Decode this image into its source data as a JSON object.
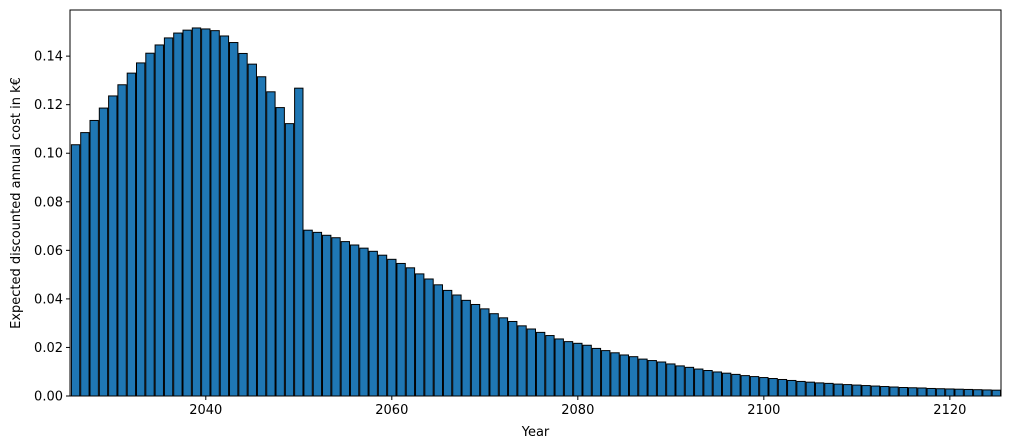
{
  "chart_data": {
    "type": "bar",
    "title": "",
    "xlabel": "Year",
    "ylabel": "Expected discounted annual cost in k€",
    "xlim": [
      2025.4,
      2125.5
    ],
    "ylim": [
      0.0,
      0.159
    ],
    "x_ticks": [
      2040,
      2060,
      2080,
      2100,
      2120
    ],
    "y_ticks": [
      0.0,
      0.02,
      0.04,
      0.06,
      0.08,
      0.1,
      0.12,
      0.14
    ],
    "y_tick_labels": [
      "0.00",
      "0.02",
      "0.04",
      "0.06",
      "0.08",
      "0.10",
      "0.12",
      "0.14"
    ],
    "grid": false,
    "colors": {
      "bar_fill": "#1f77b4",
      "bar_edge": "#000000"
    },
    "categories": [
      2026,
      2027,
      2028,
      2029,
      2030,
      2031,
      2032,
      2033,
      2034,
      2035,
      2036,
      2037,
      2038,
      2039,
      2040,
      2041,
      2042,
      2043,
      2044,
      2045,
      2046,
      2047,
      2048,
      2049,
      2050,
      2051,
      2052,
      2053,
      2054,
      2055,
      2056,
      2057,
      2058,
      2059,
      2060,
      2061,
      2062,
      2063,
      2064,
      2065,
      2066,
      2067,
      2068,
      2069,
      2070,
      2071,
      2072,
      2073,
      2074,
      2075,
      2076,
      2077,
      2078,
      2079,
      2080,
      2081,
      2082,
      2083,
      2084,
      2085,
      2086,
      2087,
      2088,
      2089,
      2090,
      2091,
      2092,
      2093,
      2094,
      2095,
      2096,
      2097,
      2098,
      2099,
      2100,
      2101,
      2102,
      2103,
      2104,
      2105,
      2106,
      2107,
      2108,
      2109,
      2110,
      2111,
      2112,
      2113,
      2114,
      2115,
      2116,
      2117,
      2118,
      2119,
      2120,
      2121,
      2122,
      2123,
      2124,
      2125
    ],
    "values": [
      0.1035,
      0.1085,
      0.1135,
      0.1186,
      0.1236,
      0.1282,
      0.133,
      0.1372,
      0.1412,
      0.1446,
      0.1475,
      0.1495,
      0.1507,
      0.1516,
      0.1512,
      0.1505,
      0.1483,
      0.1456,
      0.1411,
      0.1367,
      0.1315,
      0.1253,
      0.1188,
      0.1122,
      0.1268,
      0.0683,
      0.0674,
      0.0662,
      0.0652,
      0.0636,
      0.0622,
      0.0609,
      0.0596,
      0.058,
      0.0563,
      0.0546,
      0.0528,
      0.0503,
      0.0482,
      0.0458,
      0.0435,
      0.0416,
      0.0394,
      0.0377,
      0.0359,
      0.0339,
      0.0322,
      0.0307,
      0.0289,
      0.0276,
      0.0262,
      0.0249,
      0.0235,
      0.0224,
      0.0217,
      0.0209,
      0.0196,
      0.0187,
      0.0178,
      0.0169,
      0.0162,
      0.0152,
      0.0146,
      0.014,
      0.0132,
      0.0124,
      0.0118,
      0.0111,
      0.0105,
      0.0099,
      0.0094,
      0.0089,
      0.0084,
      0.008,
      0.0076,
      0.0072,
      0.0068,
      0.0064,
      0.006,
      0.0057,
      0.0054,
      0.0052,
      0.0049,
      0.0047,
      0.0045,
      0.0043,
      0.0041,
      0.0039,
      0.0037,
      0.0035,
      0.0034,
      0.0033,
      0.0031,
      0.003,
      0.0029,
      0.0028,
      0.0027,
      0.0026,
      0.0025,
      0.0024
    ]
  }
}
